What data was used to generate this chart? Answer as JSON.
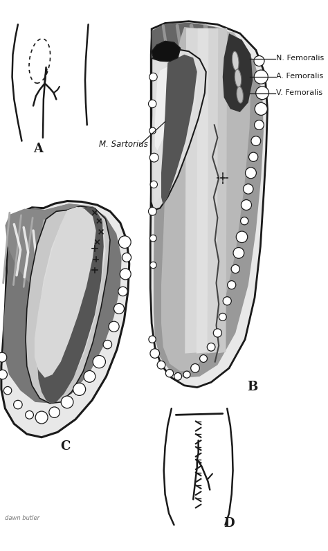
{
  "bg_color": "#ffffff",
  "label_A": "A",
  "label_B": "B",
  "label_C": "C",
  "label_D": "D",
  "label_N": "N. Femoralis",
  "label_A_fem": "A. Femoralis",
  "label_V": "V. Femoralis",
  "label_sart": "M. Sartorius",
  "author": "dawn butler",
  "col_dark": "#1a1a1a",
  "col_black": "#111111",
  "col_dkgray": "#555555",
  "col_mdgray": "#888888",
  "col_mgray2": "#999999",
  "col_ltgray": "#bbbbbb",
  "col_ltgray2": "#cccccc",
  "col_vltgray": "#dddddd",
  "col_vvlt": "#eeeeee",
  "col_white": "#ffffff",
  "col_bone": "#e8e8e8"
}
